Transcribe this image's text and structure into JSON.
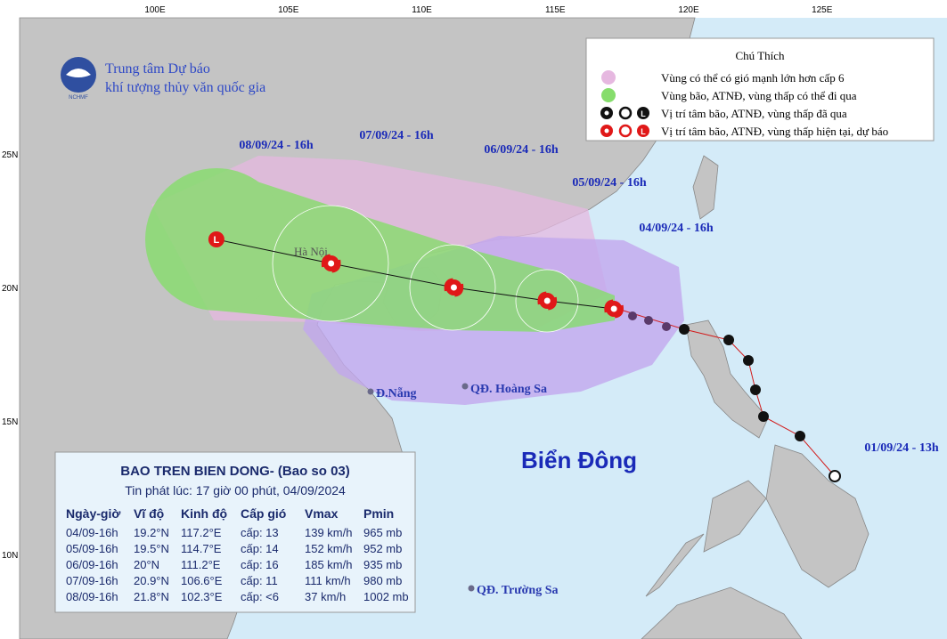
{
  "header": {
    "logo_text": "NCHMF",
    "org_line1": "Trung tâm Dự báo",
    "org_line2": "khí tượng thủy văn quốc gia"
  },
  "axes": {
    "lon_labels": [
      "100E",
      "105E",
      "110E",
      "115E",
      "120E",
      "125E"
    ],
    "lat_labels": [
      "25N",
      "20N",
      "15N",
      "10N"
    ]
  },
  "legend": {
    "title": "Chú Thích",
    "items": [
      "Vùng có thể có gió mạnh lớn hơn cấp 6",
      "Vùng bão, ATNĐ, vùng thấp có thể đi qua",
      "Vị trí tâm bão, ATNĐ, vùng thấp đã qua",
      "Vị trí tâm bão, ATNĐ, vùng thấp hiện tại, dự báo"
    ]
  },
  "date_labels": [
    "08/09/24 - 16h",
    "07/09/24 - 16h",
    "06/09/24 - 16h",
    "05/09/24 - 16h",
    "04/09/24 - 16h",
    "01/09/24 - 13h"
  ],
  "places": [
    "Hà Nội",
    "Đ.Nẵng",
    "QĐ. Hoàng Sa",
    "QĐ. Trường Sa",
    "Biển Đông"
  ],
  "info": {
    "title": "BAO TREN BIEN DONG- (Bao so 03)",
    "subtitle": "Tin phát lúc: 17 giờ 00 phút, 04/09/2024",
    "columns": [
      "Ngày-giờ",
      "Vĩ độ",
      "Kinh độ",
      "Cấp gió",
      "Vmax",
      "Pmin"
    ],
    "rows": [
      [
        "04/09-16h",
        "19.2°N",
        "117.2°E",
        "cấp: 13",
        "139 km/h",
        "965 mb"
      ],
      [
        "05/09-16h",
        "19.5°N",
        "114.7°E",
        "cấp: 14",
        "152 km/h",
        "952 mb"
      ],
      [
        "06/09-16h",
        "20°N",
        "111.2°E",
        "cấp: 16",
        "185 km/h",
        "935 mb"
      ],
      [
        "07/09-16h",
        "20.9°N",
        "106.6°E",
        "cấp: 11",
        "111 km/h",
        "980 mb"
      ],
      [
        "08/09-16h",
        "21.8°N",
        "102.3°E",
        "cấp: <6",
        "37 km/h",
        "1002 mb"
      ]
    ]
  }
}
